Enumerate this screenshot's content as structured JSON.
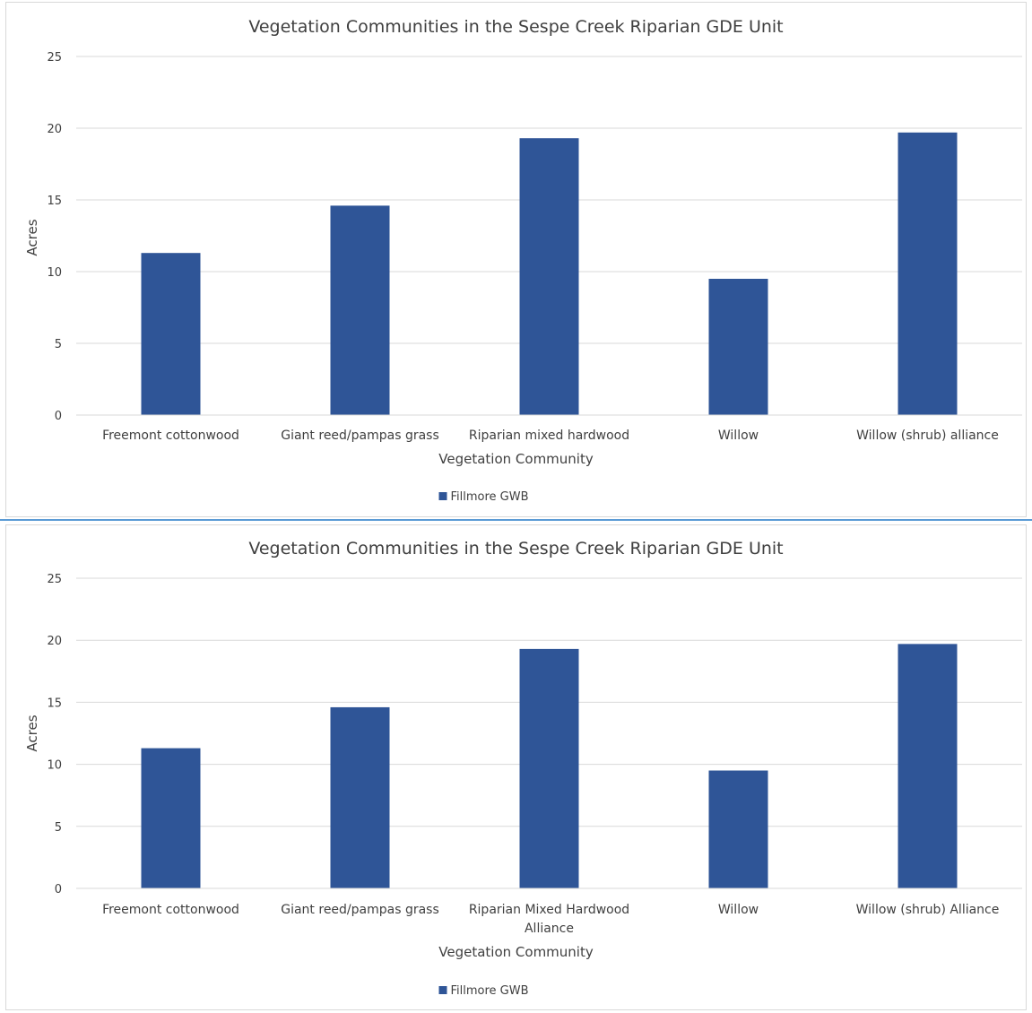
{
  "chart_data": [
    {
      "type": "bar",
      "title": "Vegetation Communities in the Sespe Creek Riparian GDE Unit",
      "xlabel": "Vegetation Community",
      "ylabel": "Acres",
      "ylim": [
        0,
        25
      ],
      "yticks": [
        0,
        5,
        10,
        15,
        20,
        25
      ],
      "grid": true,
      "legend_position": "bottom",
      "categories": [
        [
          "Freemont cottonwood"
        ],
        [
          "Giant reed/pampas grass"
        ],
        [
          "Riparian mixed hardwood"
        ],
        [
          "Willow"
        ],
        [
          "Willow (shrub) alliance"
        ]
      ],
      "series": [
        {
          "name": "Fillmore GWB",
          "color": "#2f5597",
          "values": [
            11.3,
            14.6,
            19.3,
            9.5,
            19.7
          ]
        }
      ]
    },
    {
      "type": "bar",
      "title": "Vegetation Communities in the Sespe Creek Riparian GDE Unit",
      "xlabel": "Vegetation Community",
      "ylabel": "Acres",
      "ylim": [
        0,
        25
      ],
      "yticks": [
        0,
        5,
        10,
        15,
        20,
        25
      ],
      "grid": true,
      "legend_position": "bottom",
      "categories": [
        [
          "Freemont cottonwood"
        ],
        [
          "Giant reed/pampas grass"
        ],
        [
          "Riparian Mixed Hardwood",
          "Alliance"
        ],
        [
          "Willow"
        ],
        [
          "Willow (shrub) Alliance"
        ]
      ],
      "series": [
        {
          "name": "Fillmore GWB",
          "color": "#2f5597",
          "values": [
            11.3,
            14.6,
            19.3,
            9.5,
            19.7
          ]
        }
      ]
    }
  ]
}
